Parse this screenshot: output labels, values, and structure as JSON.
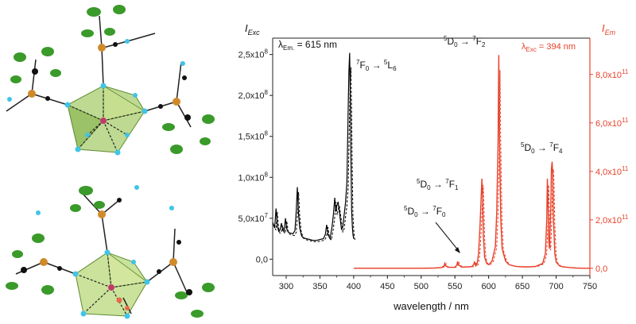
{
  "chart_data": {
    "type": "line",
    "xlabel": "wavelength / nm",
    "xlim": [
      280,
      750
    ],
    "x_ticks": [
      300,
      350,
      400,
      450,
      500,
      550,
      600,
      650,
      700,
      750
    ],
    "left_axis": {
      "label_main": "I",
      "label_sub": "Exc",
      "ylim": [
        -20000000,
        270000000
      ],
      "ticks": [
        0,
        50000000,
        100000000,
        150000000,
        200000000,
        250000000
      ],
      "tick_labels": [
        "0,0",
        "5,0x10",
        "1,0x10",
        "1,5x10",
        "2,0x10",
        "2,5x10"
      ],
      "tick_exps": [
        "",
        "7",
        "8",
        "8",
        "8",
        "8"
      ]
    },
    "right_axis": {
      "label_main": "I",
      "label_sub": "Em",
      "color": "#e8412a",
      "ylim": [
        -30000000000,
        950000000000
      ],
      "ticks": [
        0,
        200000000000,
        400000000000,
        600000000000,
        800000000000
      ],
      "tick_labels": [
        "0,0",
        "2,0x10",
        "4,0x10",
        "6,0x10",
        "8,0x10"
      ],
      "tick_exps": [
        "",
        "11",
        "11",
        "11",
        "11"
      ]
    },
    "series": [
      {
        "axis": "left",
        "color": "#000000",
        "x": [
          280,
          283,
          285,
          287,
          289,
          291,
          293,
          295,
          297,
          299,
          301,
          303,
          306,
          310,
          313,
          315,
          316.5,
          318,
          320,
          323,
          326,
          330,
          335,
          340,
          345,
          350,
          355,
          358,
          360,
          362,
          365,
          368,
          370,
          372,
          373.5,
          375,
          377,
          380,
          382,
          384,
          386,
          388,
          390,
          391,
          392,
          393,
          394,
          395,
          396,
          397,
          398,
          399,
          400
        ],
        "y": [
          45000000,
          38000000,
          62000000,
          40000000,
          34000000,
          36000000,
          44000000,
          35000000,
          34000000,
          50000000,
          37000000,
          33000000,
          32000000,
          31000000,
          35000000,
          60000000,
          88000000,
          58000000,
          38000000,
          28000000,
          26000000,
          25000000,
          24000000,
          23000000,
          23000000,
          24000000,
          25000000,
          30000000,
          42000000,
          30000000,
          25000000,
          40000000,
          55000000,
          75000000,
          58000000,
          65000000,
          70000000,
          50000000,
          36000000,
          40000000,
          55000000,
          70000000,
          95000000,
          140000000,
          190000000,
          230000000,
          252000000,
          200000000,
          120000000,
          60000000,
          40000000,
          30000000,
          25000000
        ]
      },
      {
        "axis": "right",
        "color": "#e8412a",
        "x": [
          400,
          450,
          500,
          520,
          530,
          534,
          535,
          536,
          540,
          550,
          553,
          554,
          555,
          560,
          570,
          575,
          578,
          579,
          580,
          581,
          583,
          585,
          587,
          589,
          590,
          591,
          592,
          594,
          597,
          600,
          605,
          610,
          612,
          614,
          615,
          616,
          618,
          620,
          625,
          630,
          640,
          650,
          660,
          670,
          680,
          684,
          686,
          687,
          688,
          689,
          690,
          692,
          693,
          694,
          695,
          696,
          698,
          700,
          705,
          710,
          720,
          730,
          740,
          750
        ],
        "y": [
          0,
          0,
          0,
          1000000000,
          3000000000,
          10000000000,
          20000000000,
          10000000000,
          4000000000,
          4000000000,
          15000000000,
          28000000000,
          15000000000,
          5000000000,
          6000000000,
          7000000000,
          16000000000,
          28000000000,
          16000000000,
          10000000000,
          20000000000,
          60000000000,
          160000000000,
          300000000000,
          370000000000,
          300000000000,
          140000000000,
          45000000000,
          20000000000,
          15000000000,
          30000000000,
          90000000000,
          230000000000,
          520000000000,
          880000000000,
          560000000000,
          200000000000,
          80000000000,
          30000000000,
          15000000000,
          8000000000,
          6000000000,
          6000000000,
          8000000000,
          20000000000,
          60000000000,
          200000000000,
          370000000000,
          260000000000,
          120000000000,
          80000000000,
          250000000000,
          410000000000,
          440000000000,
          380000000000,
          200000000000,
          60000000000,
          25000000000,
          10000000000,
          6000000000,
          3000000000,
          1000000000,
          0,
          0
        ]
      }
    ],
    "annotations": {
      "lambda_em": {
        "symbol": "λ",
        "sub": "Em.",
        "value": " = 615 nm"
      },
      "lambda_exc": {
        "symbol": "λ",
        "sub": "Exc",
        "value": " = 394 nm"
      },
      "excitation": {
        "a": "7",
        "b": "F",
        "c": "0",
        "arrow": " → ",
        "d": "5",
        "e": "L",
        "f": "6"
      },
      "f0": {
        "a": "5",
        "b": "D",
        "c": "0",
        "arrow": " → ",
        "d": "7",
        "e": "F",
        "f": "0"
      },
      "f1": {
        "a": "5",
        "b": "D",
        "c": "0",
        "arrow": " → ",
        "d": "7",
        "e": "F",
        "f": "1"
      },
      "f2": {
        "a": "5",
        "b": "D",
        "c": "0",
        "arrow": " → ",
        "d": "7",
        "e": "F",
        "f": "2"
      },
      "f4": {
        "a": "5",
        "b": "D",
        "c": "0",
        "arrow": " → ",
        "d": "7",
        "e": "F",
        "f": "4"
      }
    }
  }
}
